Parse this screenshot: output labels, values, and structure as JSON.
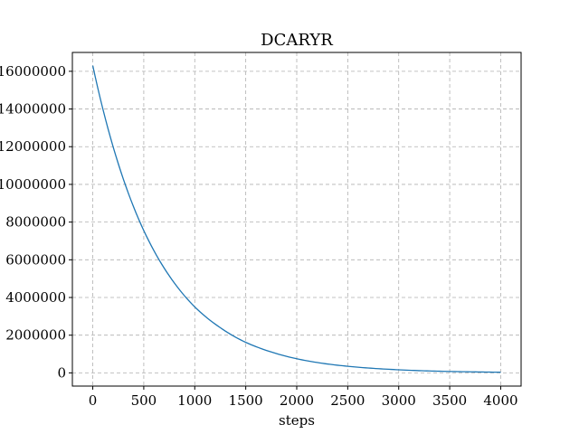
{
  "chart_data": {
    "type": "line",
    "title": "DCARYR",
    "xlabel": "steps",
    "ylabel": "",
    "xlim": [
      -200,
      4200
    ],
    "ylim": [
      -700000,
      17000000
    ],
    "xticks": [
      0,
      500,
      1000,
      1500,
      2000,
      2500,
      3000,
      3500,
      4000
    ],
    "xtick_labels": [
      "0",
      "500",
      "1000",
      "1500",
      "2000",
      "2500",
      "3000",
      "3500",
      "4000"
    ],
    "yticks": [
      0,
      2000000,
      4000000,
      6000000,
      8000000,
      10000000,
      12000000,
      14000000,
      16000000
    ],
    "ytick_labels": [
      "0",
      "2000000",
      "4000000",
      "6000000",
      "8000000",
      "10000000",
      "12000000",
      "14000000",
      "16000000"
    ],
    "grid": true,
    "series": [
      {
        "color": "#1f77b4",
        "x": [
          0,
          250,
          500,
          750,
          1000,
          1250,
          1500,
          1750,
          2000,
          2250,
          2500,
          2750,
          3000,
          3250,
          3500,
          3750,
          4000
        ],
        "y": [
          16300000,
          11100000,
          7550000,
          5150000,
          3500000,
          2400000,
          1620000,
          1110000,
          750000,
          510000,
          350000,
          240000,
          165000,
          110000,
          75000,
          52000,
          35000
        ]
      }
    ]
  }
}
